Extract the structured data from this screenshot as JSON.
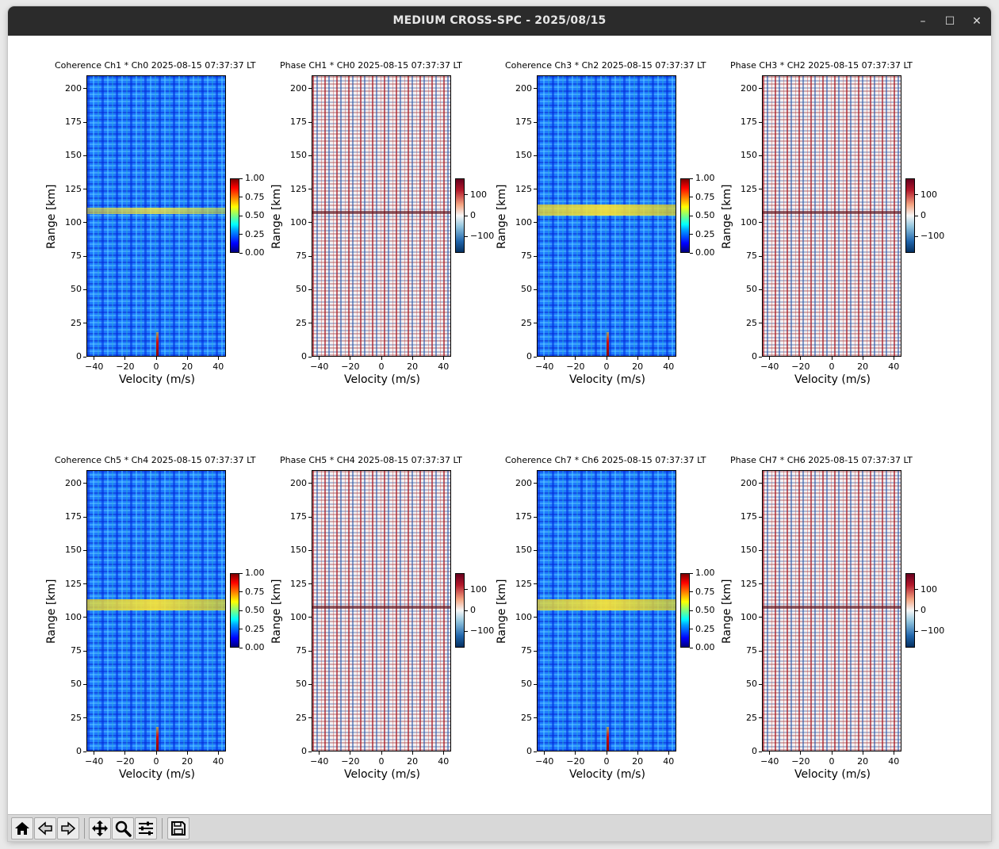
{
  "window": {
    "title": "MEDIUM CROSS-SPC - 2025/08/15",
    "controls": {
      "minimize_glyph": "–",
      "maximize_glyph": "☐",
      "close_glyph": "✕"
    }
  },
  "axes": {
    "xlabel": "Velocity (m/s)",
    "ylabel": "Range [km]",
    "xticks": [
      "−40",
      "−20",
      "0",
      "20",
      "40"
    ],
    "yticks": [
      "0",
      "25",
      "50",
      "75",
      "100",
      "125",
      "150",
      "175",
      "200"
    ]
  },
  "colorbars": {
    "coherence": {
      "ticks": [
        "0.00",
        "0.25",
        "0.50",
        "0.75",
        "1.00"
      ],
      "colormap": "jet"
    },
    "phase": {
      "ticks": [
        "−100",
        "0",
        "100"
      ],
      "colormap": "RdBu_r"
    }
  },
  "chart_data": [
    {
      "type": "heatmap",
      "kind": "coherence",
      "title": "Coherence Ch1 * Ch0 2025-08-15 07:37:37 LT",
      "xlim": [
        -45,
        45
      ],
      "ylim": [
        0,
        210
      ],
      "zlim": [
        0,
        1
      ],
      "colormap": "jet"
    },
    {
      "type": "heatmap",
      "kind": "phase",
      "title": "Phase CH1 * CH0 2025-08-15 07:37:37 LT",
      "xlim": [
        -45,
        45
      ],
      "ylim": [
        0,
        210
      ],
      "zlim": [
        -180,
        180
      ],
      "colormap": "RdBu_r"
    },
    {
      "type": "heatmap",
      "kind": "coherence",
      "title": "Coherence Ch3 * Ch2 2025-08-15 07:37:37 LT",
      "xlim": [
        -45,
        45
      ],
      "ylim": [
        0,
        210
      ],
      "zlim": [
        0,
        1
      ],
      "colormap": "jet"
    },
    {
      "type": "heatmap",
      "kind": "phase",
      "title": "Phase CH3 * CH2 2025-08-15 07:37:37 LT",
      "xlim": [
        -45,
        45
      ],
      "ylim": [
        0,
        210
      ],
      "zlim": [
        -180,
        180
      ],
      "colormap": "RdBu_r"
    },
    {
      "type": "heatmap",
      "kind": "coherence",
      "title": "Coherence Ch5 * Ch4 2025-08-15 07:37:37 LT",
      "xlim": [
        -45,
        45
      ],
      "ylim": [
        0,
        210
      ],
      "zlim": [
        0,
        1
      ],
      "colormap": "jet"
    },
    {
      "type": "heatmap",
      "kind": "phase",
      "title": "Phase CH5 * CH4 2025-08-15 07:37:37 LT",
      "xlim": [
        -45,
        45
      ],
      "ylim": [
        0,
        210
      ],
      "zlim": [
        -180,
        180
      ],
      "colormap": "RdBu_r"
    },
    {
      "type": "heatmap",
      "kind": "coherence",
      "title": "Coherence Ch7 * Ch6 2025-08-15 07:37:37 LT",
      "xlim": [
        -45,
        45
      ],
      "ylim": [
        0,
        210
      ],
      "zlim": [
        0,
        1
      ],
      "colormap": "jet"
    },
    {
      "type": "heatmap",
      "kind": "phase",
      "title": "Phase CH7 * CH6 2025-08-15 07:37:37 LT",
      "xlim": [
        -45,
        45
      ],
      "ylim": [
        0,
        210
      ],
      "zlim": [
        -180,
        180
      ],
      "colormap": "RdBu_r"
    }
  ],
  "toolbar": {
    "buttons": [
      {
        "name": "home-button",
        "icon": "home-icon"
      },
      {
        "name": "back-button",
        "icon": "arrow-left-icon"
      },
      {
        "name": "forward-button",
        "icon": "arrow-right-icon"
      },
      {
        "name": "pan-button",
        "icon": "move-icon"
      },
      {
        "name": "zoom-button",
        "icon": "magnifier-icon"
      },
      {
        "name": "configure-subplots-button",
        "icon": "sliders-icon"
      },
      {
        "name": "save-button",
        "icon": "floppy-disk-icon"
      }
    ]
  }
}
